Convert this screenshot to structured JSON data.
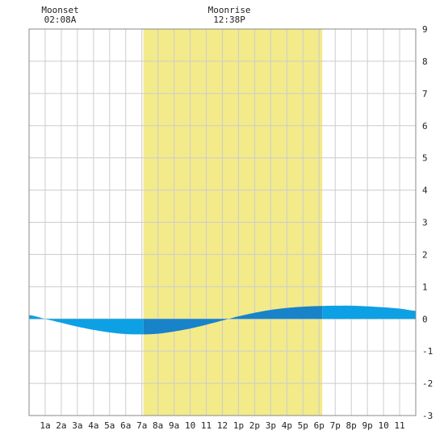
{
  "chart_data": {
    "type": "area",
    "title": "",
    "xlabel": "",
    "ylabel": "",
    "x_ticks": [
      "1a",
      "2a",
      "3a",
      "4a",
      "5a",
      "6a",
      "7a",
      "8a",
      "9a",
      "10",
      "11",
      "12",
      "1p",
      "2p",
      "3p",
      "4p",
      "5p",
      "6p",
      "7p",
      "8p",
      "9p",
      "10",
      "11"
    ],
    "xlim": [
      0,
      24
    ],
    "ylim": [
      -3,
      9
    ],
    "y_ticks": [
      9,
      8,
      7,
      6,
      5,
      4,
      3,
      2,
      1,
      0,
      -1,
      -2,
      -3
    ],
    "grid": true,
    "daylight": {
      "start_hour": 7.1,
      "end_hour": 18.2,
      "color": "#f3ea8a"
    },
    "tide_curve": {
      "hours": [
        0,
        1,
        2,
        3,
        4,
        5,
        6,
        7,
        8,
        9,
        10,
        11,
        12,
        13,
        14,
        15,
        16,
        17,
        18,
        19,
        20,
        21,
        22,
        23,
        24
      ],
      "heights": [
        0.12,
        0.0,
        -0.12,
        -0.24,
        -0.34,
        -0.42,
        -0.47,
        -0.48,
        -0.46,
        -0.39,
        -0.3,
        -0.18,
        -0.05,
        0.08,
        0.19,
        0.28,
        0.34,
        0.38,
        0.4,
        0.41,
        0.41,
        0.39,
        0.36,
        0.32,
        0.25
      ],
      "color_day": "#1883c9",
      "color_night": "#0ea0e4"
    },
    "moon_events": [
      {
        "label": "Moonset",
        "time": "02:08A",
        "hour": 2.13
      },
      {
        "label": "Moonrise",
        "time": "12:38P",
        "hour": 12.63
      }
    ]
  }
}
